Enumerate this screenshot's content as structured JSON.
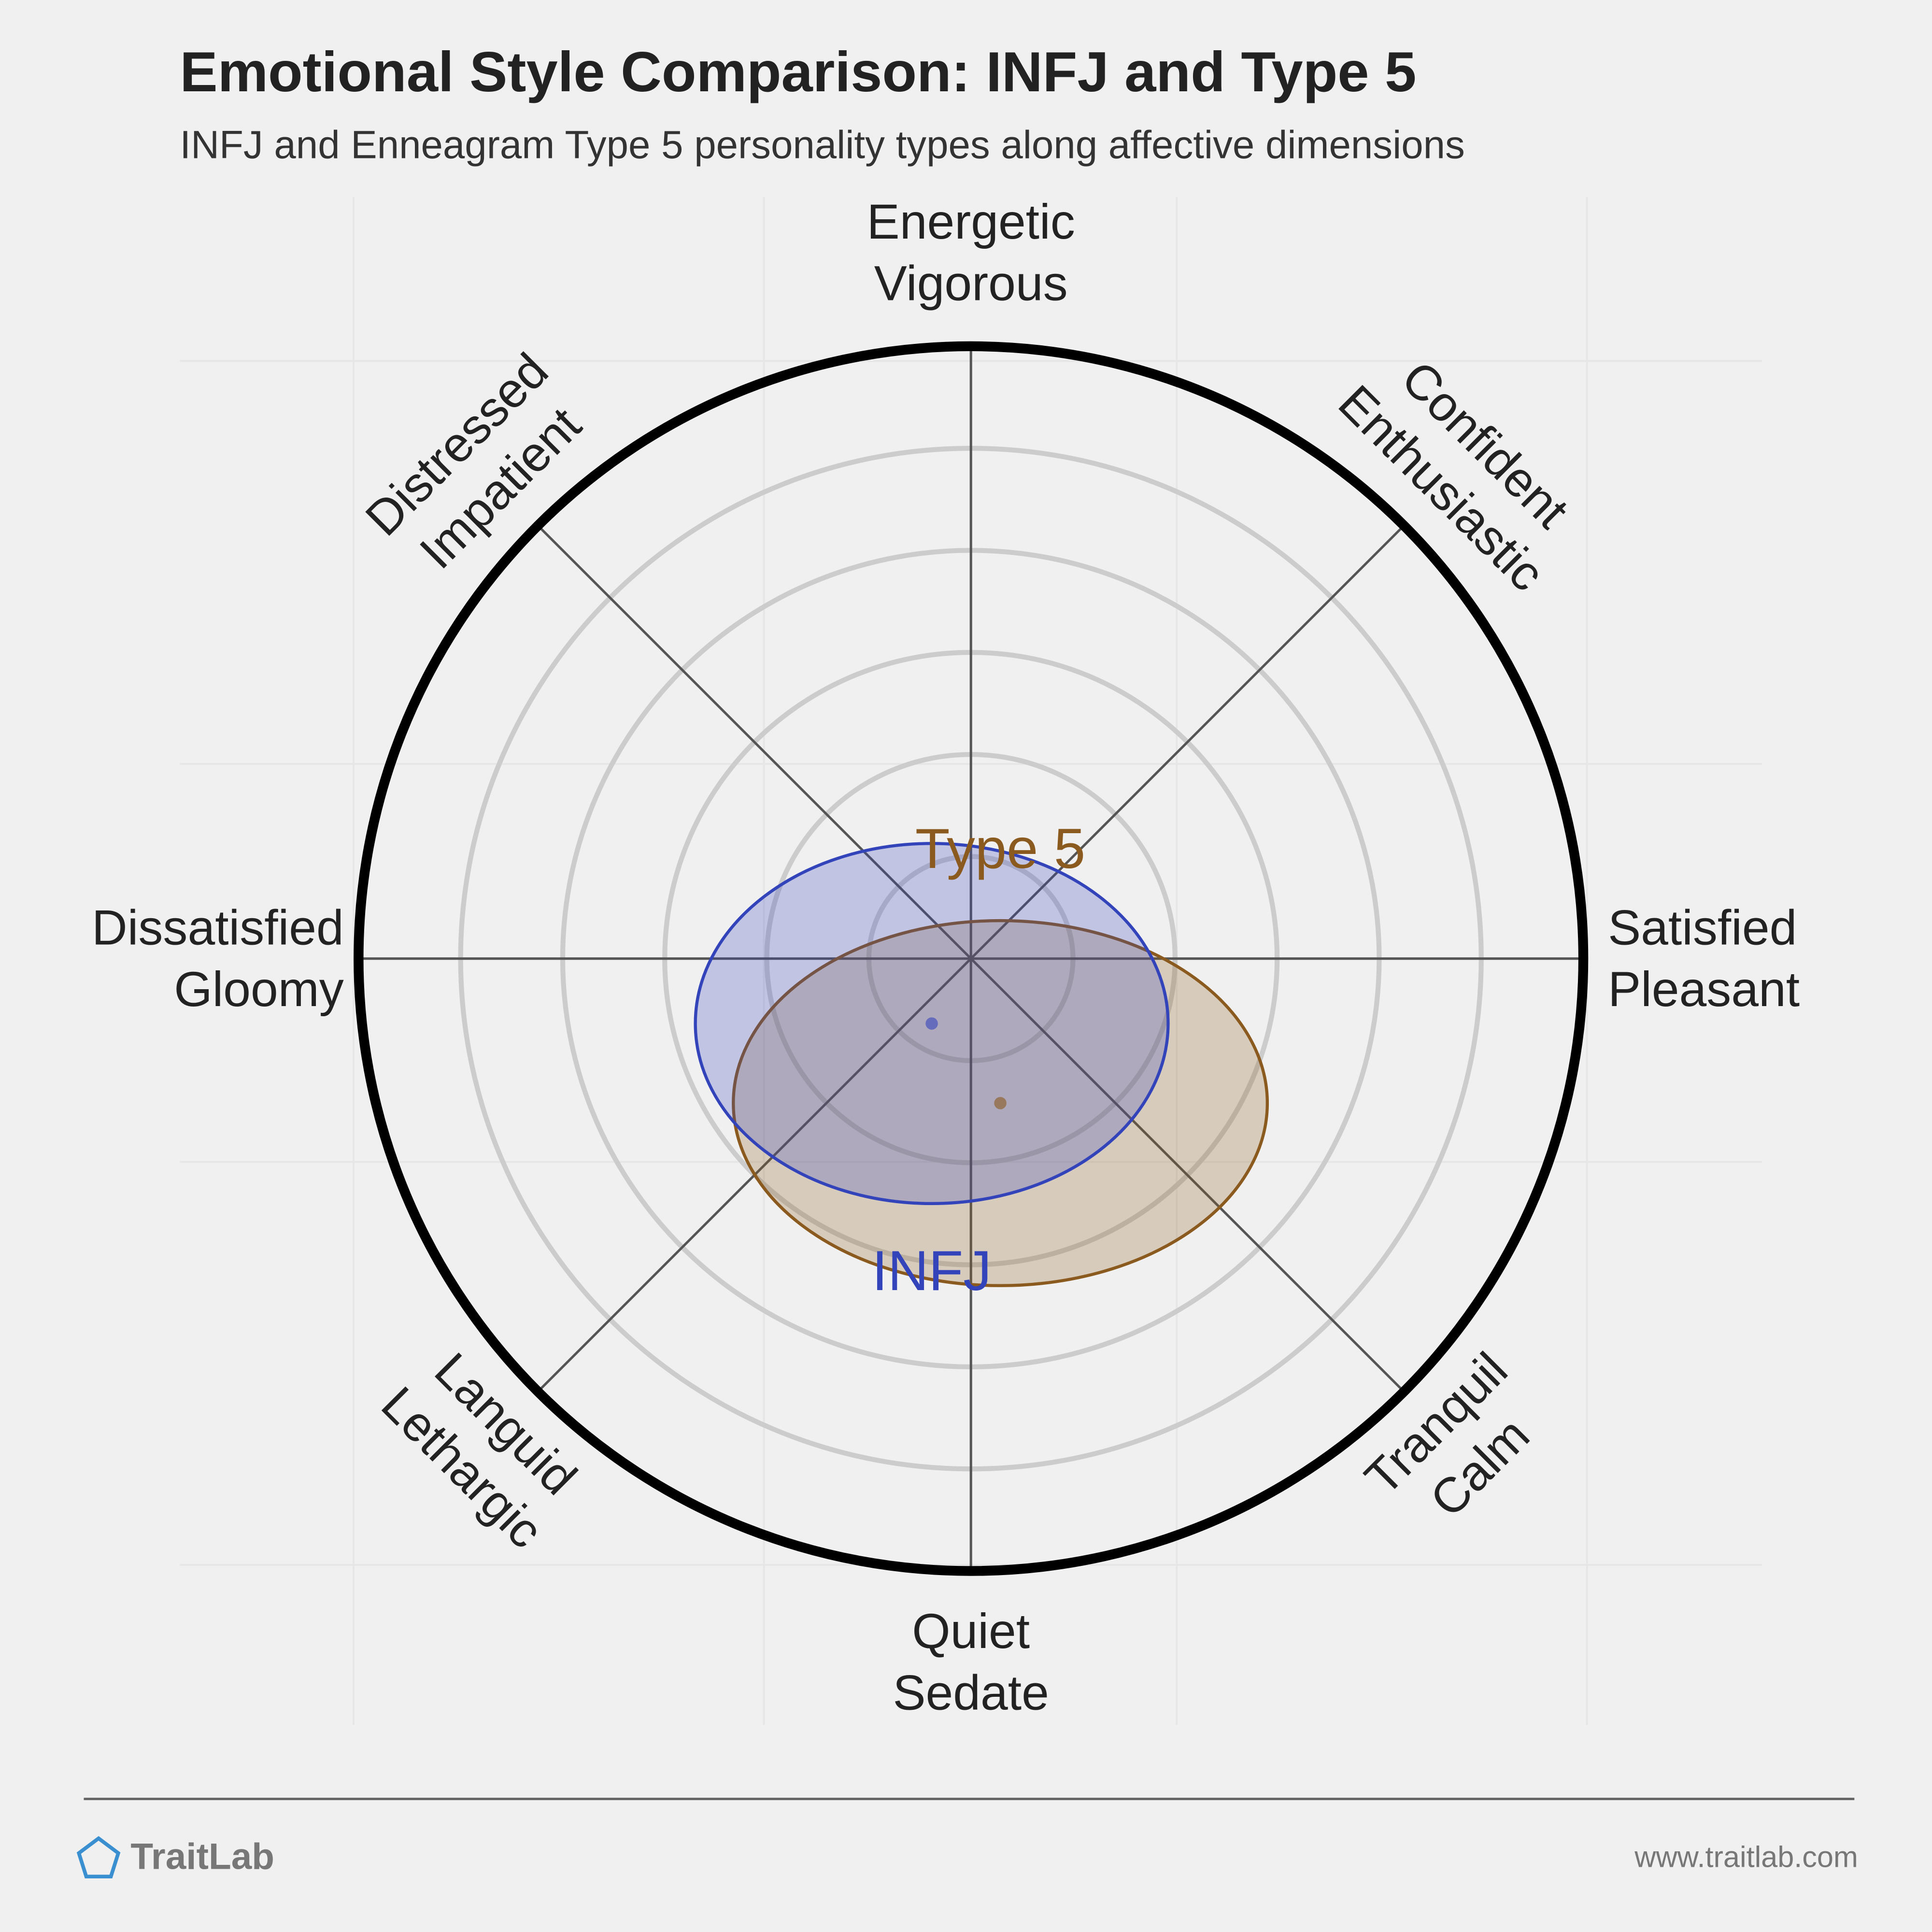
{
  "chart_data": {
    "type": "circumplex",
    "title": "Emotional Style Comparison: INFJ and Type 5",
    "subtitle": "INFJ and Enneagram Type 5 personality types along affective dimensions",
    "axis_labels": [
      [
        "Energetic",
        "Vigorous"
      ],
      [
        "Confident",
        "Enthusiastic"
      ],
      [
        "Satisfied",
        "Pleasant"
      ],
      [
        "Tranquil",
        "Calm"
      ],
      [
        "Quiet",
        "Sedate"
      ],
      [
        "Languid",
        "Lethargic"
      ],
      [
        "Dissatisfied",
        "Gloomy"
      ],
      [
        "Distressed",
        "Impatient"
      ]
    ],
    "xlim": [
      -1,
      1
    ],
    "ylim": [
      -1,
      1
    ],
    "series": [
      {
        "name": "Type 5",
        "color": "#8b5a1e",
        "x": 0.048,
        "y": -0.236,
        "rx": 0.436,
        "ry": 0.298,
        "label_position": "top"
      },
      {
        "name": "INFJ",
        "color": "#3344bb",
        "x": -0.064,
        "y": -0.106,
        "rx": 0.386,
        "ry": 0.294,
        "label_position": "bottom"
      }
    ]
  },
  "footer": {
    "brand": "TraitLab",
    "url": "www.traitlab.com"
  }
}
